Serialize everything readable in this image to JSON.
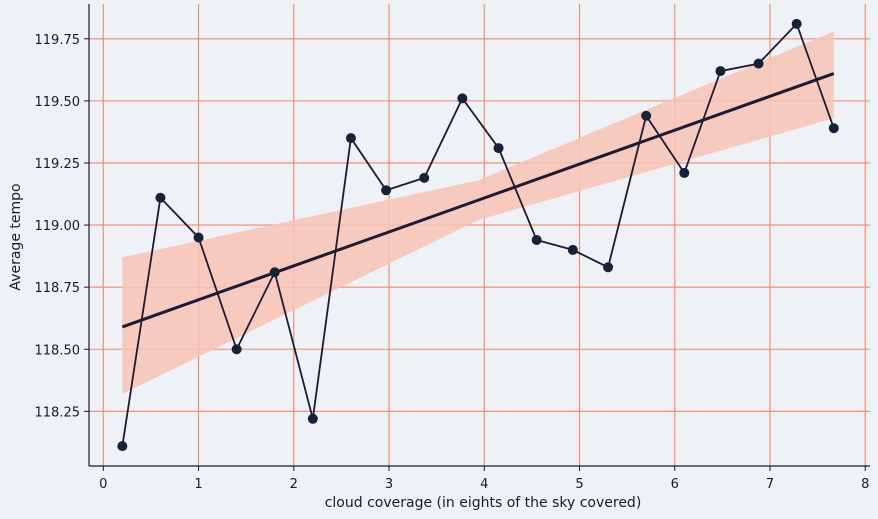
{
  "chart_data": {
    "type": "line",
    "title": "",
    "xlabel": "cloud coverage (in eights of the sky covered)",
    "ylabel": "Average tempo",
    "xlim": [
      -0.15,
      8.05
    ],
    "ylim": [
      118.03,
      119.89
    ],
    "x_ticks": [
      0,
      1,
      2,
      3,
      4,
      5,
      6,
      7,
      8
    ],
    "y_ticks": [
      118.25,
      118.5,
      118.75,
      119.0,
      119.25,
      119.5,
      119.75
    ],
    "grid": true,
    "series": [
      {
        "x": [
          0.2,
          0.6,
          1.0,
          1.4,
          1.8,
          2.2,
          2.6,
          2.97,
          3.37,
          3.77,
          4.15,
          4.55,
          4.93,
          5.3,
          5.7,
          6.1,
          6.48,
          6.88,
          7.28,
          7.67
        ],
        "y": [
          118.11,
          119.11,
          118.95,
          118.5,
          118.81,
          118.22,
          119.35,
          119.14,
          119.19,
          119.51,
          119.31,
          118.94,
          118.9,
          118.83,
          119.44,
          119.21,
          119.62,
          119.65,
          119.81,
          119.39
        ]
      }
    ],
    "regression": {
      "x": [
        0.2,
        7.67
      ],
      "y": [
        118.59,
        119.61
      ],
      "ci_upper": [
        118.87,
        119.78
      ],
      "ci_lower": [
        118.32,
        119.43
      ]
    },
    "colors": {
      "background": "#eef1f5",
      "grid": "#f08a6c",
      "line": "#1f1a33",
      "marker": "#152238",
      "band": "#f7c3b5",
      "axis": "#1a1a2e"
    }
  }
}
